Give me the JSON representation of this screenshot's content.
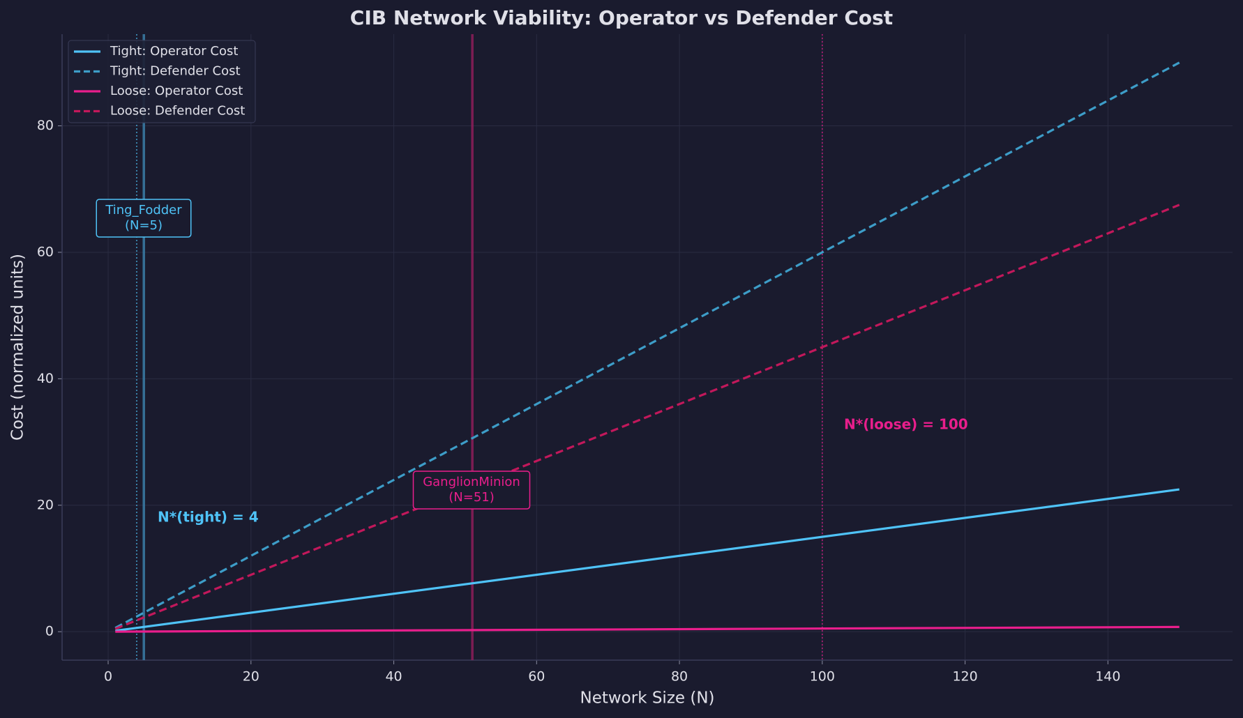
{
  "chart_data": {
    "type": "line",
    "title": "CIB Network Viability: Operator vs Defender Cost",
    "x_label": "Network Size (N)",
    "y_label": "Cost (normalized units)",
    "x": [
      1,
      150
    ],
    "series": [
      {
        "name": "Tight: Operator Cost",
        "color": "#4fc3f7",
        "dashed": false,
        "values": [
          0.15,
          22.5
        ]
      },
      {
        "name": "Tight: Defender Cost",
        "color": "#3d9dc8",
        "dashed": true,
        "values": [
          0.6,
          90
        ]
      },
      {
        "name": "Loose: Operator Cost",
        "color": "#e91e8c",
        "dashed": false,
        "values": [
          0.005,
          0.75
        ]
      },
      {
        "name": "Loose: Defender Cost",
        "color": "#c2185b",
        "dashed": true,
        "values": [
          0.45,
          67.5
        ]
      }
    ],
    "vlines": [
      {
        "x": 4,
        "color": "#4fc3f7",
        "style": "dotted"
      },
      {
        "x": 5,
        "color": "#3a7ea8",
        "style": "solid"
      },
      {
        "x": 51,
        "color": "#8e1e5a",
        "style": "solid"
      },
      {
        "x": 100,
        "color": "#e91e8c",
        "style": "dotted"
      }
    ],
    "annotations": [
      {
        "lines": [
          "Ting_Fodder",
          "(N=5)"
        ],
        "color": "#4fc3f7",
        "boxed": true
      },
      {
        "lines": [
          "GanglionMinion",
          "(N=51)"
        ],
        "color": "#e91e8c",
        "boxed": true
      },
      {
        "lines": [
          "N*(tight) = 4"
        ],
        "color": "#4fc3f7",
        "boxed": false
      },
      {
        "lines": [
          "N*(loose) = 100"
        ],
        "color": "#e91e8c",
        "boxed": false
      }
    ],
    "xlim": [
      -6.45,
      157.45
    ],
    "ylim": [
      -4.5,
      94.5
    ],
    "xticks": [
      0,
      20,
      40,
      60,
      80,
      100,
      120,
      140
    ],
    "yticks": [
      0,
      20,
      40,
      60,
      80
    ],
    "grid": true,
    "legend": "upper-left"
  }
}
